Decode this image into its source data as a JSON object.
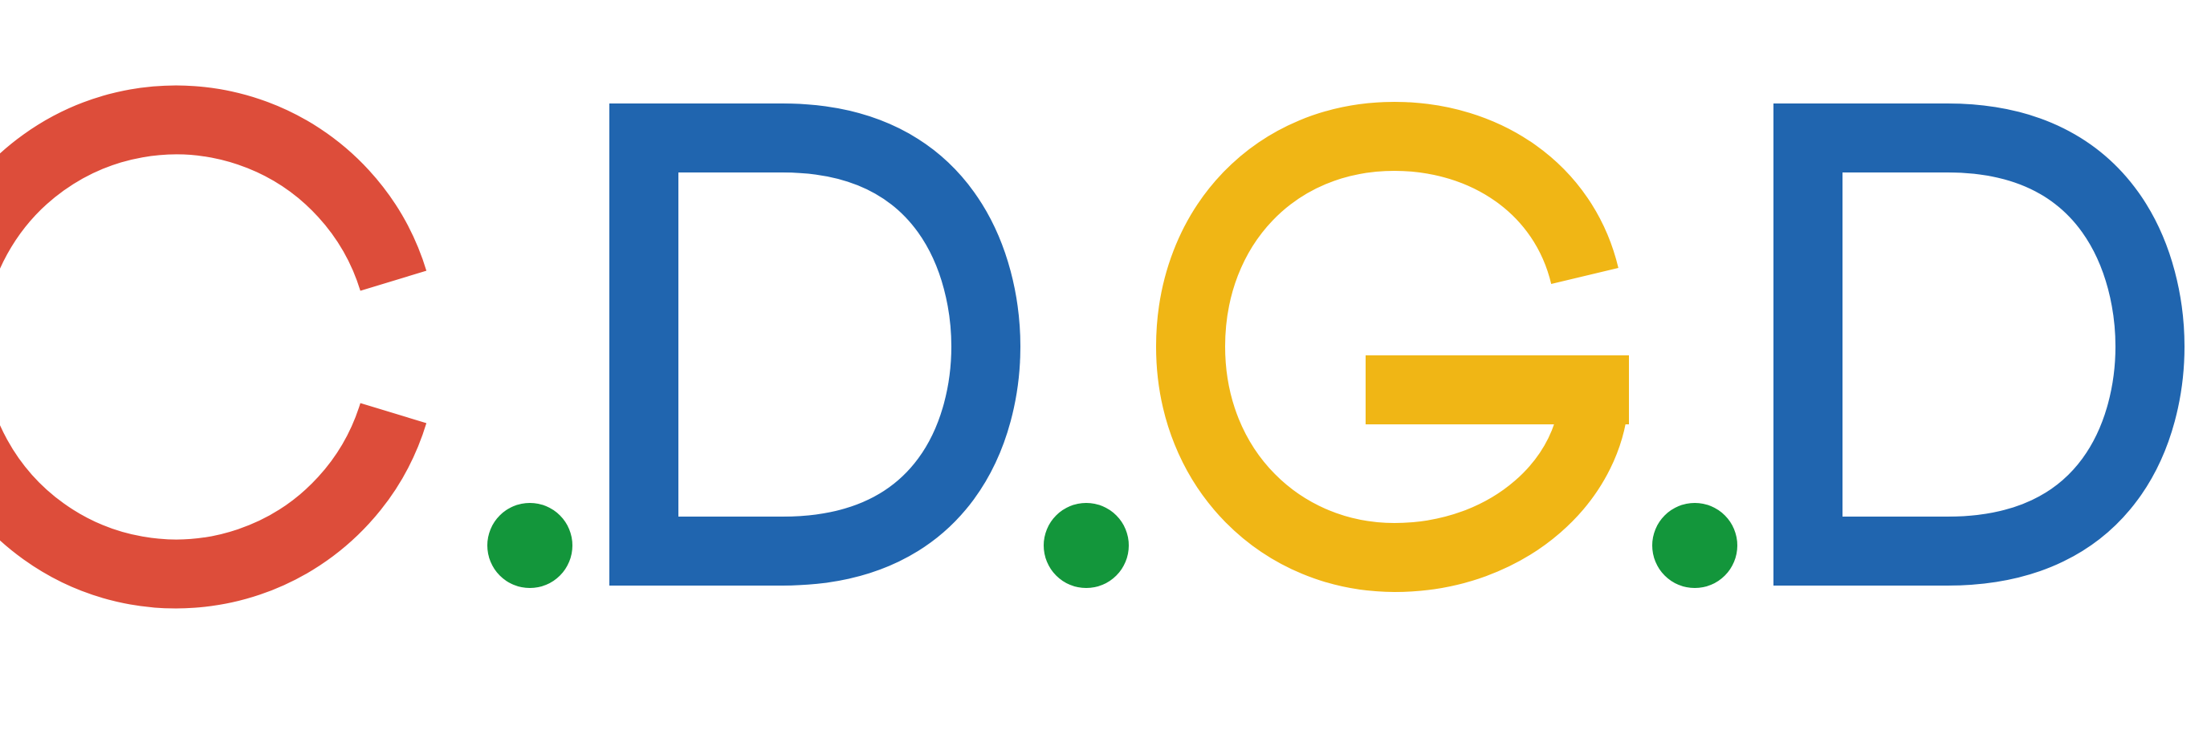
{
  "logo": {
    "text": "C.D.G.D",
    "letters": [
      {
        "char": "C",
        "color": "#DD4D3A"
      },
      {
        "char": "D",
        "color": "#2065AF"
      },
      {
        "char": "G",
        "color": "#F0B615"
      },
      {
        "char": "D",
        "color": "#2065AF"
      }
    ],
    "dot_color": "#13963B"
  }
}
